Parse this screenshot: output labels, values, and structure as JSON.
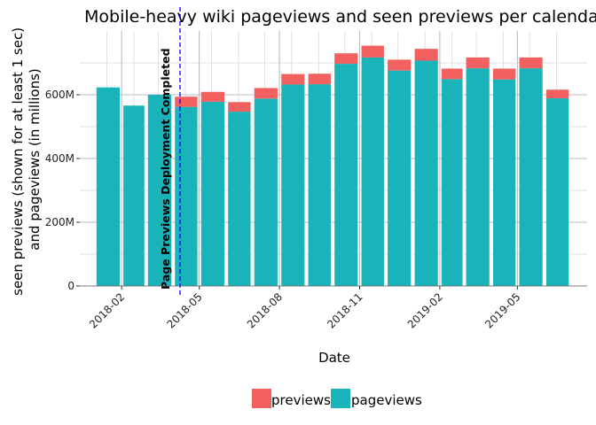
{
  "chart_data": {
    "type": "bar",
    "stacked": true,
    "title": "Mobile-heavy wiki pageviews and seen previews per calendar month",
    "xlabel": "Date",
    "ylabel_lines": [
      "seen previews (shown for at least 1 sec)",
      "and pageviews (in millions)"
    ],
    "x": [
      "2018-01",
      "2018-02",
      "2018-03",
      "2018-04",
      "2018-05",
      "2018-06",
      "2018-07",
      "2018-08",
      "2018-09",
      "2018-10",
      "2018-11",
      "2018-12",
      "2019-01",
      "2019-02",
      "2019-03",
      "2019-04",
      "2019-05",
      "2019-06"
    ],
    "series": [
      {
        "name": "pageviews",
        "color": "#19B4BA",
        "values": [
          623,
          566,
          600,
          562,
          578,
          547,
          588,
          632,
          633,
          697,
          717,
          676,
          707,
          649,
          683,
          648,
          683,
          589
        ]
      },
      {
        "name": "previews",
        "color": "#F26060",
        "values": [
          0,
          0,
          0,
          32,
          31,
          30,
          33,
          33,
          33,
          33,
          37,
          34,
          37,
          33,
          34,
          34,
          34,
          27
        ]
      }
    ],
    "x_ticks": [
      "2018-02",
      "2018-05",
      "2018-08",
      "2018-11",
      "2019-02",
      "2019-05"
    ],
    "y_ticks": [
      0,
      200,
      400,
      600
    ],
    "y_tick_labels": [
      "0",
      "200M",
      "400M",
      "600M"
    ],
    "ylim": [
      0,
      800
    ],
    "annotation": {
      "x": "2018-04-09",
      "label": "Page Previews Deployment Completed",
      "color": "#0000FF",
      "style": "dashed"
    },
    "legend": {
      "position": "bottom",
      "entries": [
        "previews",
        "pageviews"
      ]
    },
    "grid": true
  }
}
